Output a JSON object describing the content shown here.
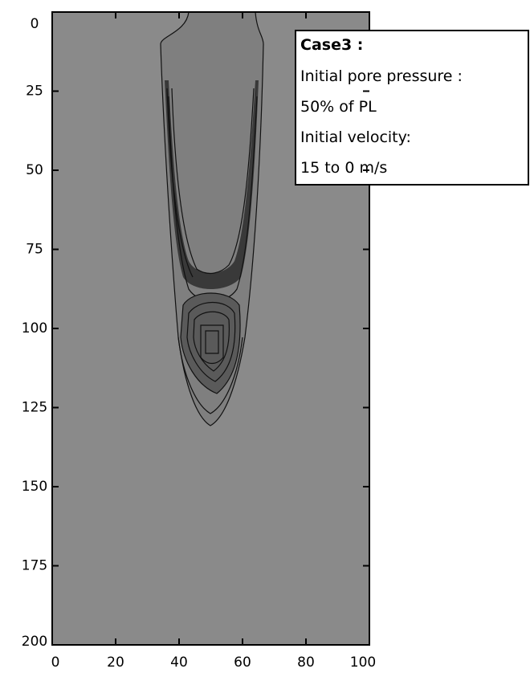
{
  "chart_data": {
    "type": "contour",
    "xlim": [
      0,
      100
    ],
    "ylim": [
      200,
      0
    ],
    "xticks": [
      0,
      20,
      40,
      60,
      80,
      100
    ],
    "yticks": [
      0,
      25,
      50,
      75,
      100,
      125,
      150,
      175,
      200
    ],
    "annotation": {
      "title": "Case3 :",
      "lines": [
        "Initial pore pressure :",
        "50% of PL",
        "Initial velocity:",
        "15 to 0 m/s"
      ]
    }
  }
}
